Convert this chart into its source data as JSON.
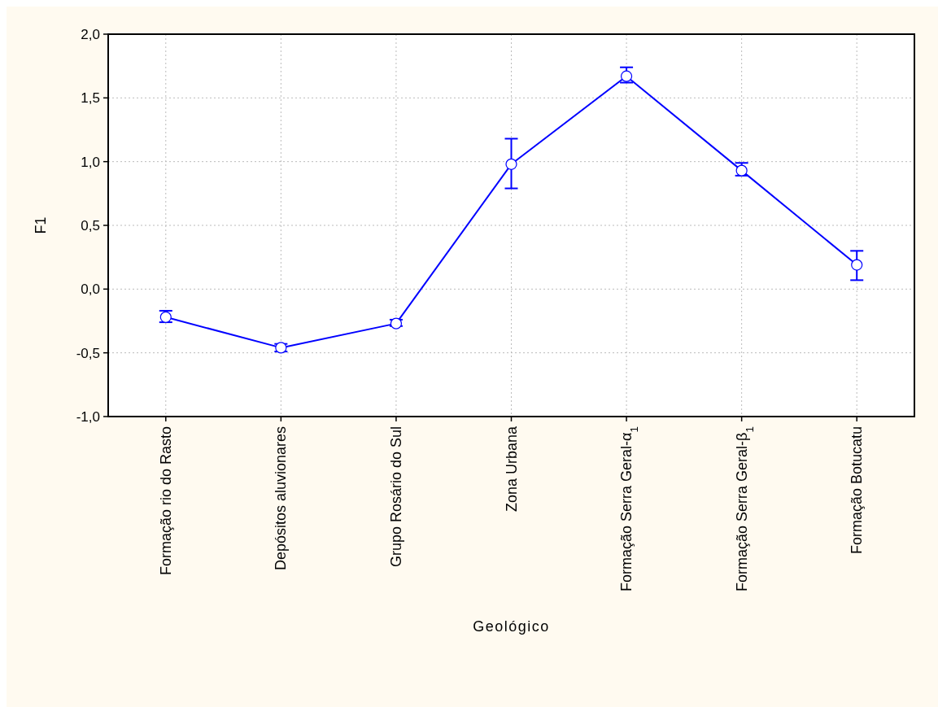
{
  "chart_data": {
    "type": "line",
    "xlabel": "Geológico",
    "ylabel": "F1",
    "categories": [
      "Formação rio do Rasto",
      "Depósitos aluvionares",
      "Grupo Rosário do Sul",
      "Zona Urbana",
      "Formação Serra Geral-α$_{1}$",
      "Formação Serra Geral-β$_{1}$",
      "Formação Botucatu"
    ],
    "series": [
      {
        "color": "#0000ff",
        "values": [
          -0.22,
          -0.46,
          -0.27,
          0.98,
          1.67,
          0.93,
          0.19
        ],
        "errors": [
          [
            -0.26,
            -0.17
          ],
          [
            -0.49,
            -0.43
          ],
          [
            -0.29,
            -0.24
          ],
          [
            0.79,
            1.18
          ],
          [
            1.62,
            1.74
          ],
          [
            0.89,
            0.99
          ],
          [
            0.07,
            0.3
          ]
        ]
      }
    ],
    "ylim": [
      -1,
      2
    ],
    "yticks": [
      {
        "value": -1,
        "label": "-1,0"
      },
      {
        "value": -0.5,
        "label": "-0,5"
      },
      {
        "value": 0,
        "label": "0,0"
      },
      {
        "value": 0.5,
        "label": "0,5"
      },
      {
        "value": 1,
        "label": "1,0"
      },
      {
        "value": 1.5,
        "label": "1,5"
      },
      {
        "value": 2,
        "label": "2,0"
      }
    ],
    "grid": true,
    "marker": "circle",
    "line_style": "solid"
  }
}
